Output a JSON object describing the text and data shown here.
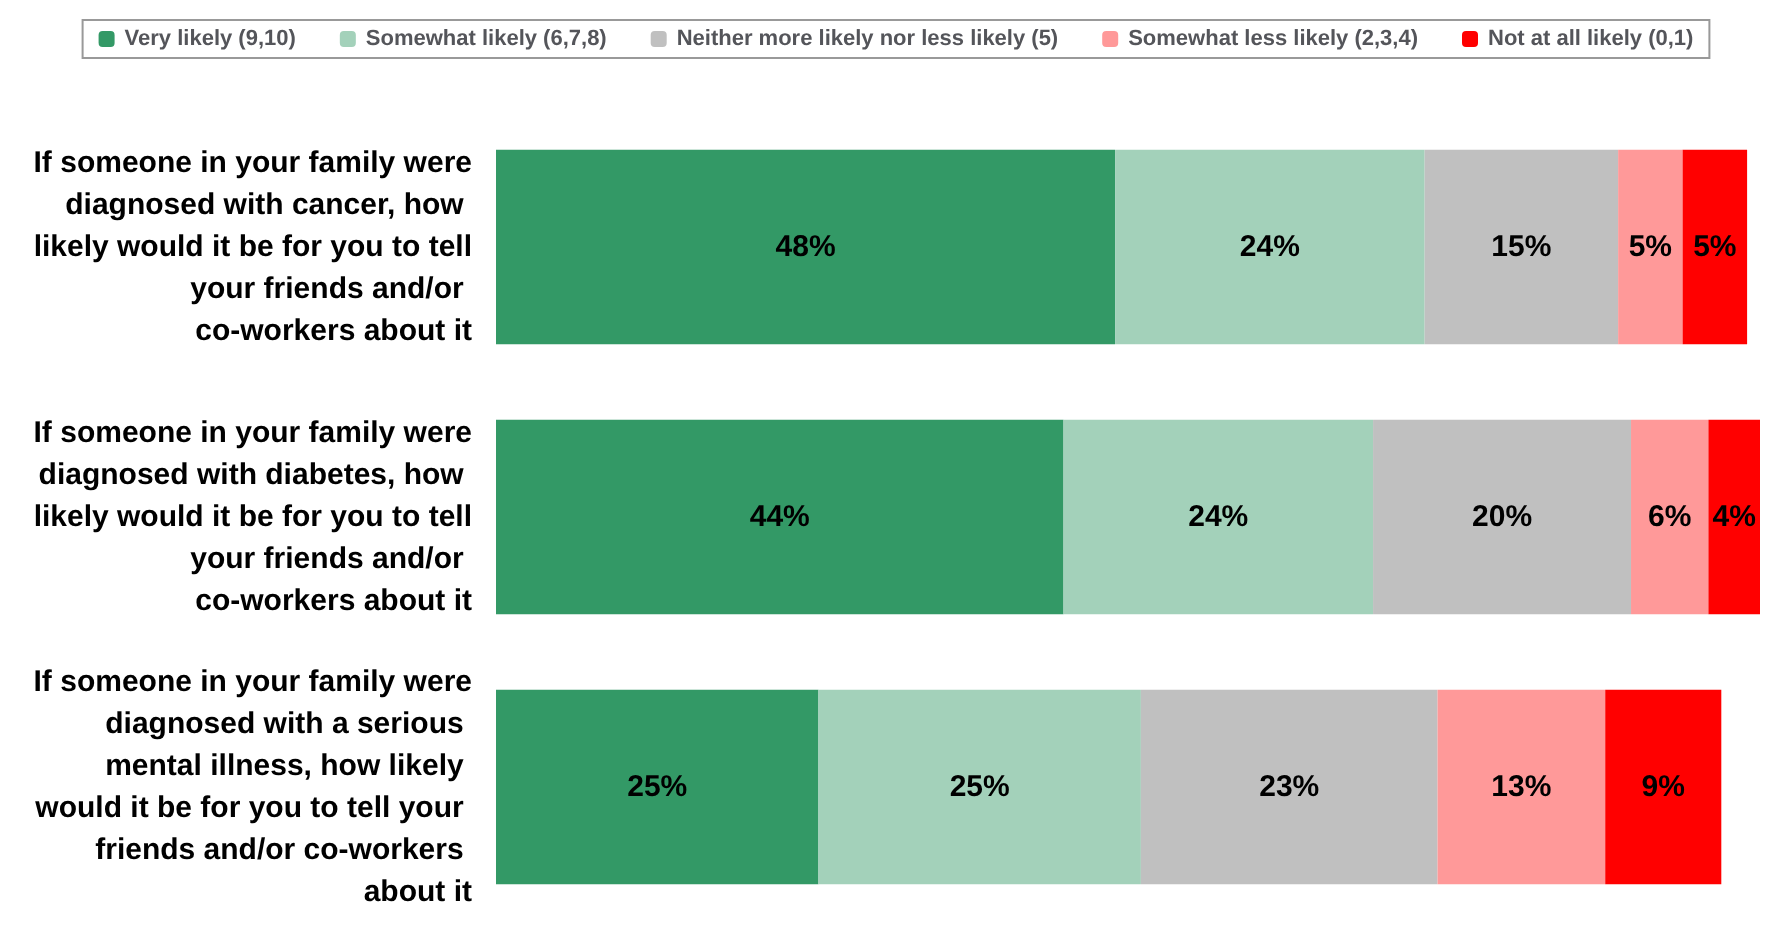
{
  "chart_data": {
    "type": "bar",
    "orientation": "horizontal",
    "stacked": true,
    "legend": "top",
    "categories": [
      "If someone in your family were diagnosed with cancer, how likely would it be for you to tell your friends and/or co-workers about it",
      "If someone in your family were diagnosed with diabetes, how likely would it be for you to tell your friends and/or co-workers about it",
      "If someone in your family were diagnosed with a serious mental illness, how likely would it be for you to tell your friends and/or co-workers about it"
    ],
    "series": [
      {
        "name": "Very likely (9,10)",
        "color": "#339966",
        "values": [
          48,
          44,
          25
        ],
        "value_labels": [
          "48%",
          "44%",
          "25%"
        ]
      },
      {
        "name": "Somewhat likely (6,7,8)",
        "color": "#a3d1ba",
        "values": [
          24,
          24,
          25
        ],
        "value_labels": [
          "24%",
          "24%",
          "25%"
        ]
      },
      {
        "name": "Neither more likely nor less likely (5)",
        "color": "#c0c0c0",
        "values": [
          15,
          20,
          23
        ],
        "value_labels": [
          "15%",
          "20%",
          "23%"
        ]
      },
      {
        "name": "Somewhat less likely (2,3,4)",
        "color": "#ff9999",
        "values": [
          5,
          6,
          13
        ],
        "value_labels": [
          "5%",
          "6%",
          "13%"
        ]
      },
      {
        "name": "Not at all likely (0,1)",
        "color": "#ff0000",
        "values": [
          5,
          4,
          9
        ],
        "value_labels": [
          "5%",
          "4%",
          "9%"
        ]
      }
    ]
  }
}
